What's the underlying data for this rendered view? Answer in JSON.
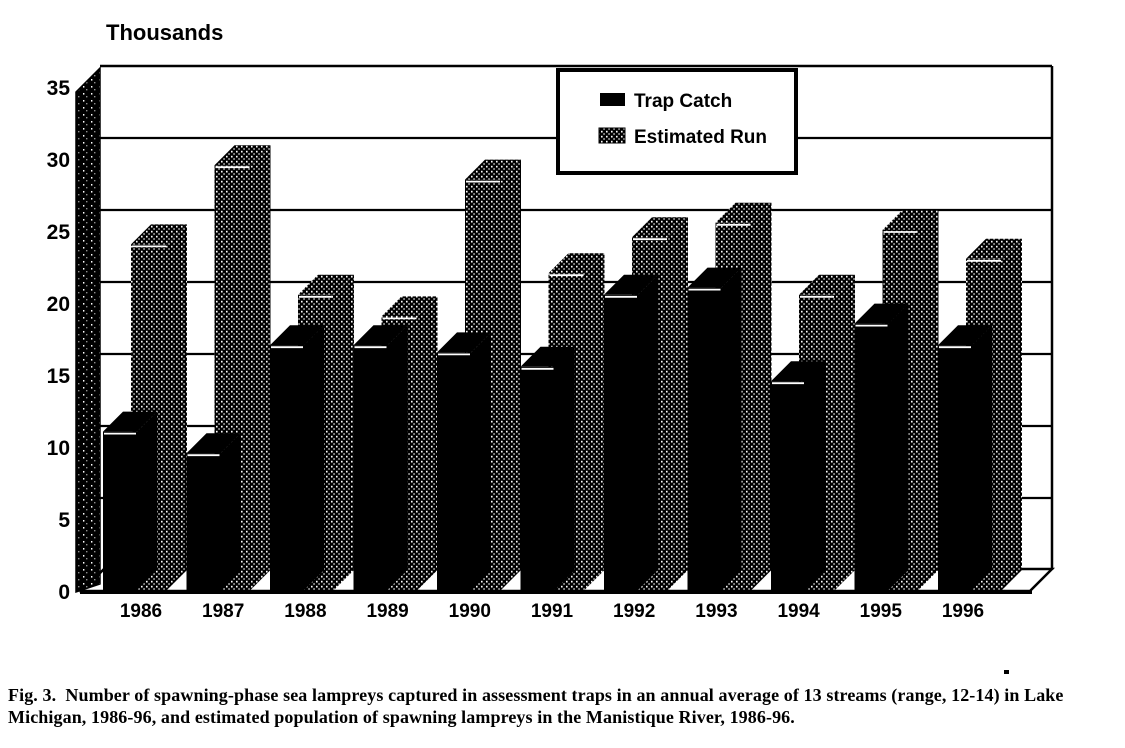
{
  "page": {
    "kind": "scanned black-and-white statistical figure",
    "ink_color": "#000000",
    "background_color": "#ffffff"
  },
  "chart_data": {
    "type": "bar",
    "projection": "3d",
    "title": "Thousands",
    "xlabel": "",
    "ylabel": "Thousands",
    "categories": [
      "1986",
      "1987",
      "1988",
      "1989",
      "1990",
      "1991",
      "1992",
      "1993",
      "1994",
      "1995",
      "1996"
    ],
    "series": [
      {
        "name": "Trap Catch",
        "swatch": "solid-black",
        "values": [
          11,
          9.5,
          17,
          17,
          16.5,
          15.5,
          20.5,
          21,
          14.5,
          18.5,
          17
        ]
      },
      {
        "name": "Estimated Run",
        "swatch": "stippled",
        "values": [
          24,
          29.5,
          20.5,
          19,
          28.5,
          22,
          24.5,
          25.5,
          20.5,
          25,
          23
        ]
      }
    ],
    "ylim": [
      0,
      35
    ],
    "ytick_step": 5,
    "yticks": [
      "0",
      "5",
      "10",
      "15",
      "20",
      "25",
      "30",
      "35"
    ],
    "grid": true,
    "legend_position": "top-center-inside"
  },
  "caption": {
    "line1": "Fig. 3.  Number of spawning-phase sea lampreys captured in assessment traps in an annual average of 13 streams (range, 12-14) in Lake",
    "line2": "Michigan, 1986-96, and estimated population of spawning lampreys in the Manistique River, 1986-96."
  }
}
